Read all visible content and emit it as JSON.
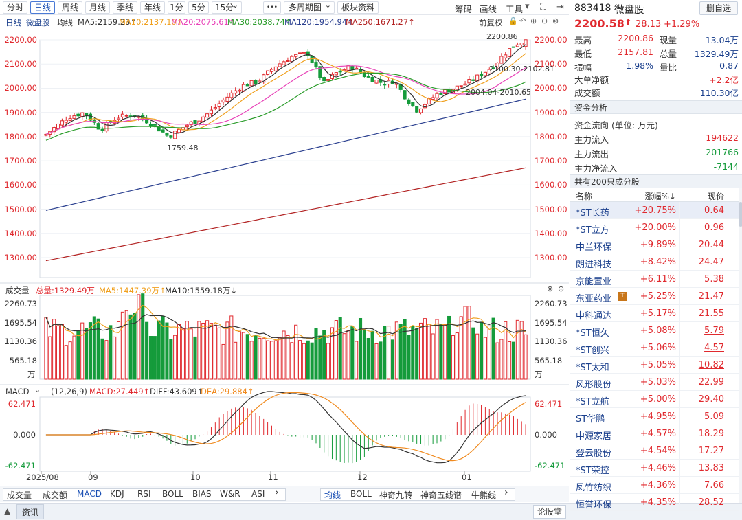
{
  "toolbar": {
    "periods": [
      "分时",
      "日线",
      "周线",
      "月线",
      "季线",
      "年线",
      "1分",
      "5分",
      "15分"
    ],
    "active_period": "日线",
    "more": "•••",
    "multi_period": "多周期图",
    "block_info": "板块资料",
    "right_items": [
      "筹码",
      "画线",
      "工具"
    ]
  },
  "chart_header": {
    "period": "日线",
    "name": "微盘股",
    "ma_label": "均线",
    "ma": [
      {
        "label": "MA5:2159.23↑",
        "color": "#333333"
      },
      {
        "label": "MA10:2137.10↑",
        "color": "#f0a01e"
      },
      {
        "label": "MA20:2075.61↑",
        "color": "#e843b8"
      },
      {
        "label": "MA30:2038.74↑",
        "color": "#2a9c2a"
      },
      {
        "label": "MA120:1954.94↑",
        "color": "#2a3f8f"
      },
      {
        "label": "MA250:1671.27↑",
        "color": "#b22222"
      }
    ],
    "adjust": "前复权"
  },
  "price_axis": [
    "2200.00",
    "2100.00",
    "2000.00",
    "1900.00",
    "1800.00",
    "1700.00",
    "1600.00",
    "1500.00",
    "1400.00",
    "1300.00"
  ],
  "annotations": {
    "high": "2200.86",
    "low": "1759.48",
    "range1": "2100.30-2102.81",
    "range2": "2004.04-2010.65"
  },
  "volume_header": {
    "label": "成交量",
    "total": "总量:1329.49万",
    "ma5": "MA5:1447.39万↑",
    "ma10": "MA10:1559.18万↓"
  },
  "volume_axis": [
    "2260.73",
    "1695.54",
    "1130.36",
    "565.18"
  ],
  "volume_unit": "万",
  "macd_header": {
    "label": "MACD",
    "params": "(12,26,9)",
    "macd": "MACD:27.449↑",
    "diff": "DIFF:43.609↑",
    "dea": "DEA:29.884↑"
  },
  "macd_axis": [
    "62.471",
    "0.000",
    "-62.471"
  ],
  "date_axis": [
    "2025/08",
    "09",
    "10",
    "11",
    "12",
    "01"
  ],
  "indicator_tabs": [
    "成交量",
    "成交额",
    "MACD",
    "KDJ",
    "RSI",
    "BOLL",
    "BIAS",
    "W&R",
    "ASI"
  ],
  "active_indicator": "MACD",
  "overlay_tabs": [
    "均线",
    "BOLL",
    "神奇九转",
    "神奇五线谱",
    "牛熊线"
  ],
  "active_overlay": "均线",
  "status_bar": {
    "news": "资讯",
    "discuss": "论股堂"
  },
  "quote": {
    "code": "883418",
    "name": "微盘股",
    "price": "2200.58",
    "change": "28.13",
    "change_pct": "+1.29%",
    "delete_btn": "删自选",
    "rows": [
      {
        "l1": "最高",
        "v1": "2200.86",
        "l2": "现量",
        "v2": "13.04万",
        "c1": "red",
        "c2": "blue"
      },
      {
        "l1": "最低",
        "v1": "2157.81",
        "l2": "总量",
        "v2": "1329.49万",
        "c1": "red",
        "c2": "blue"
      },
      {
        "l1": "振幅",
        "v1": "1.98%",
        "l2": "量比",
        "v2": "0.87",
        "c1": "blue",
        "c2": "blue"
      }
    ],
    "net_big": {
      "label": "大单净额",
      "value": "+2.2亿"
    },
    "turnover": {
      "label": "成交额",
      "value": "110.30亿"
    }
  },
  "fund_flow": {
    "title": "资金分析",
    "unit_label": "资金流向 (单位: 万元)",
    "inflow": {
      "label": "主力流入",
      "value": "194622"
    },
    "outflow": {
      "label": "主力流出",
      "value": "201766"
    },
    "net": {
      "label": "主力净流入",
      "value": "-7144"
    }
  },
  "constituents": {
    "title": "共有200只成分股",
    "headers": [
      "名称",
      "涨幅%↓",
      "现价"
    ],
    "rows": [
      {
        "name": "*ST长药",
        "pct": "+20.75%",
        "price": "0.64",
        "u": true
      },
      {
        "name": "*ST立方",
        "pct": "+20.00%",
        "price": "0.96",
        "u": true
      },
      {
        "name": "中兰环保",
        "pct": "+9.89%",
        "price": "20.44",
        "u": false
      },
      {
        "name": "朗进科技",
        "pct": "+8.42%",
        "price": "24.47",
        "u": false
      },
      {
        "name": "京能置业",
        "pct": "+6.11%",
        "price": "5.38",
        "u": false
      },
      {
        "name": "东亚药业",
        "pct": "+5.25%",
        "price": "21.47",
        "u": false
      },
      {
        "name": "中科通达",
        "pct": "+5.17%",
        "price": "21.55",
        "u": false
      },
      {
        "name": "*ST恒久",
        "pct": "+5.08%",
        "price": "5.79",
        "u": true
      },
      {
        "name": "*ST创兴",
        "pct": "+5.06%",
        "price": "4.57",
        "u": true
      },
      {
        "name": "*ST太和",
        "pct": "+5.05%",
        "price": "10.82",
        "u": true
      },
      {
        "name": "风形股份",
        "pct": "+5.03%",
        "price": "22.99",
        "u": false
      },
      {
        "name": "*ST立航",
        "pct": "+5.00%",
        "price": "29.40",
        "u": true
      },
      {
        "name": "ST华鹏",
        "pct": "+4.95%",
        "price": "5.09",
        "u": true
      },
      {
        "name": "中源家居",
        "pct": "+4.57%",
        "price": "18.29",
        "u": false
      },
      {
        "name": "登云股份",
        "pct": "+4.54%",
        "price": "17.27",
        "u": false
      },
      {
        "name": "*ST荣控",
        "pct": "+4.46%",
        "price": "13.83",
        "u": false
      },
      {
        "name": "凤竹纺织",
        "pct": "+4.36%",
        "price": "7.66",
        "u": false
      },
      {
        "name": "恒誉环保",
        "pct": "+4.35%",
        "price": "28.52",
        "u": false
      }
    ]
  }
}
